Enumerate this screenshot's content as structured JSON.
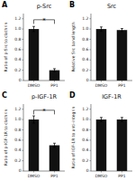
{
  "chart_data": [
    {
      "type": "bar",
      "title": "p-Src",
      "ylabel": "Ratio of p-Src to clathrin",
      "categories": [
        "DMSO",
        "PP1"
      ],
      "values": [
        1.0,
        0.2
      ],
      "errors": [
        0.05,
        0.03
      ],
      "color": "#111111",
      "ylim": [
        0,
        1.3
      ],
      "yticks": [
        0,
        0.2,
        0.4,
        0.6,
        0.8,
        {
          "value": 1.0,
          "label": "1.0"
        },
        1.2
      ],
      "grid": false,
      "annotations": [
        {
          "text": "A"
        },
        {
          "text": "*",
          "x0": "DMSO",
          "x1": "PP1",
          "y1": 1.1,
          "y2": 1.18
        }
      ]
    },
    {
      "type": "bar",
      "title": "Src",
      "ylabel": "Relative Src band length",
      "categories": [
        "DMSO",
        "PP1"
      ],
      "values": [
        1.0,
        0.98
      ],
      "errors": [
        0.04,
        0.03
      ],
      "color": "#111111",
      "ylim": [
        0,
        1.3
      ],
      "yticks": [
        0,
        0.2,
        0.4,
        0.6,
        0.8,
        {
          "value": 1.0,
          "label": "1.0"
        },
        1.2
      ],
      "grid": false,
      "annotations": [
        {
          "text": "B"
        }
      ]
    },
    {
      "type": "bar",
      "title": "p-IGF-1R",
      "ylabel": "Ratio of p-IGF-1R to clathrin",
      "categories": [
        "DMSO",
        "PP1"
      ],
      "values": [
        1.0,
        0.5
      ],
      "errors": [
        0.07,
        0.04
      ],
      "color": "#111111",
      "ylim": [
        0,
        1.3
      ],
      "yticks": [
        0,
        0.2,
        0.4,
        0.6,
        0.8,
        {
          "value": 1.0,
          "label": "1.0"
        },
        1.2
      ],
      "grid": false,
      "annotations": [
        {
          "text": "C"
        },
        {
          "text": "*",
          "x0": "DMSO",
          "x1": "PP1",
          "y1": 1.1,
          "y2": 1.18
        }
      ]
    },
    {
      "type": "bar",
      "title": "IGF-1R",
      "ylabel": "Ratio of IGF-1R to anti-integrin",
      "categories": [
        "DMSO",
        "PP1"
      ],
      "values": [
        1.0,
        1.0
      ],
      "errors": [
        0.04,
        0.04
      ],
      "color": "#111111",
      "ylim": [
        0,
        1.3
      ],
      "yticks": [
        0,
        0.2,
        0.4,
        0.6,
        0.8,
        {
          "value": 1.0,
          "label": "1.0"
        },
        1.2
      ],
      "grid": false,
      "annotations": [
        {
          "text": "D"
        }
      ]
    }
  ]
}
